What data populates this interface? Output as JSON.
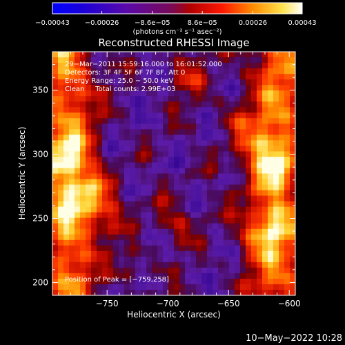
{
  "chart_data": {
    "type": "heatmap",
    "title": "Reconstructed RHESSI Image",
    "xlabel": "Heliocentric X (arcsec)",
    "ylabel": "Heliocentric Y (arcsec)",
    "xlim": [
      -795,
      -595
    ],
    "ylim": [
      190,
      380
    ],
    "x_ticks": [
      -750,
      -700,
      -650,
      -600
    ],
    "x_tick_labels": [
      "−750",
      "−700",
      "−650",
      "−600"
    ],
    "y_ticks": [
      200,
      250,
      300,
      350
    ],
    "y_tick_labels": [
      "200",
      "250",
      "300",
      "350"
    ],
    "colorbar": {
      "range": [
        -0.00043,
        0.00043
      ],
      "tick_values": [
        -0.00043,
        -0.00026,
        -8.6e-05,
        8.6e-05,
        0.00026,
        0.00043
      ],
      "tick_labels": [
        "−0.00043",
        "−0.00026",
        "−8.6e−05",
        "8.6e−05",
        "0.00026",
        "0.00043"
      ],
      "unit_label": "(photons cm⁻² s⁻¹ asec⁻²)"
    },
    "info_lines": [
      "29−Mar−2011 15:59:16.000 to 16:01:52.000",
      "Detectors: 3F 4F 5F 6F 7F 8F, Att 0",
      "Energy Range: 25.0 − 50.0 keV",
      "Clean     Total counts: 2.99E+03"
    ],
    "peak_label": "Position of Peak = [−759,258]",
    "peak_position": [
      -759,
      258
    ],
    "colormap": "heat (blue-purple-red-orange-yellow-white)"
  },
  "timestamp": "10−May−2022 10:28"
}
